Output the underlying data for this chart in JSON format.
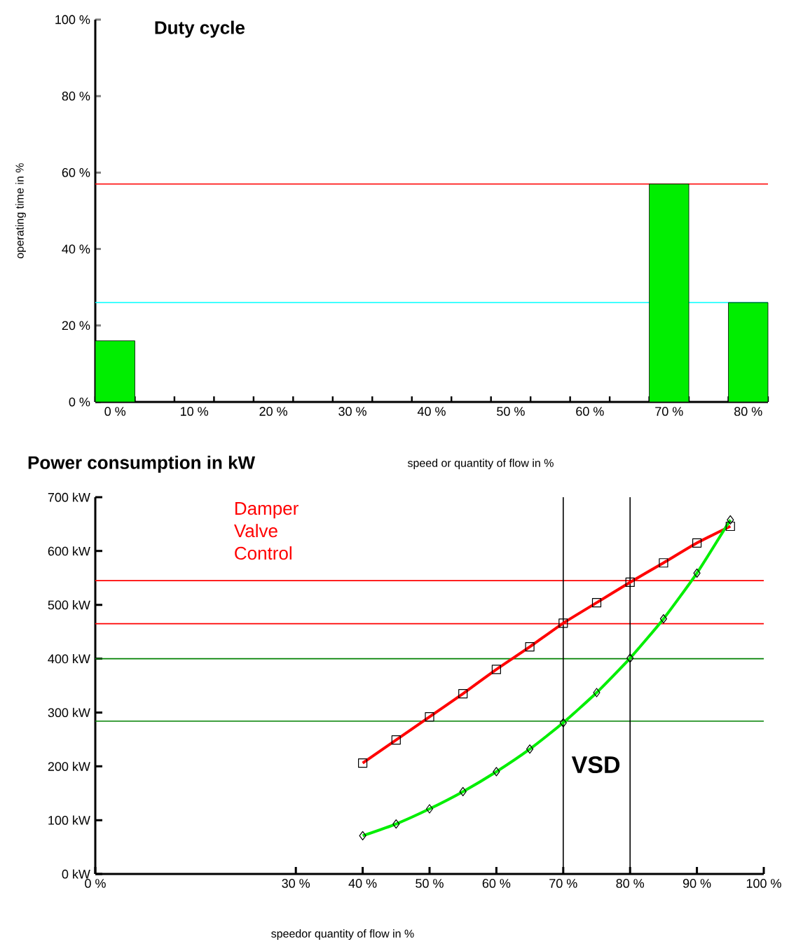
{
  "chart_data": [
    {
      "type": "bar",
      "title": "Duty cycle",
      "xlabel": "speed or quantity of flow in %",
      "ylabel": "operating time in %",
      "categories": [
        "0 %",
        "10 %",
        "20 %",
        "30 %",
        "40 %",
        "50 %",
        "60 %",
        "70 %",
        "80 %"
      ],
      "values": [
        16,
        null,
        null,
        null,
        null,
        null,
        null,
        57,
        26
      ],
      "color": "#00ee00",
      "ylim": [
        0,
        100
      ],
      "yticks": [
        {
          "value": 0,
          "label": "0 %"
        },
        {
          "value": 20,
          "label": "20 %"
        },
        {
          "value": 40,
          "label": "40 %"
        },
        {
          "value": 60,
          "label": "60 %"
        },
        {
          "value": 80,
          "label": "80 %"
        },
        {
          "value": 100,
          "label": "100 %"
        }
      ],
      "ref_lines": [
        {
          "axis": "y",
          "value": 57,
          "color": "#ff0000"
        },
        {
          "axis": "y",
          "value": 26,
          "color": "#00ffff"
        }
      ],
      "grid": false
    },
    {
      "type": "line",
      "title": "Power consumption in kW",
      "xlabel": "speedor quantity of flow in %",
      "x": [
        40,
        45,
        50,
        55,
        60,
        65,
        70,
        75,
        80,
        85,
        90,
        95
      ],
      "series": [
        {
          "name": "Damper Valve Control",
          "color": "#ff0000",
          "marker": "square",
          "values": [
            206,
            249,
            292,
            335,
            380,
            422,
            466,
            504,
            542,
            578,
            615,
            646
          ]
        },
        {
          "name": "VSD",
          "color": "#00ee00",
          "marker": "diamond",
          "values": [
            71,
            93,
            121,
            153,
            190,
            232,
            281,
            337,
            401,
            474,
            559,
            658
          ]
        }
      ],
      "xlim": [
        0,
        100
      ],
      "xticks": [
        {
          "value": 0,
          "label": "0 %"
        },
        {
          "value": 30,
          "label": "30 %"
        },
        {
          "value": 40,
          "label": "40 %"
        },
        {
          "value": 50,
          "label": "50 %"
        },
        {
          "value": 60,
          "label": "60 %"
        },
        {
          "value": 70,
          "label": "70 %"
        },
        {
          "value": 80,
          "label": "80 %"
        },
        {
          "value": 90,
          "label": "90 %"
        },
        {
          "value": 100,
          "label": "100 %"
        }
      ],
      "ylim": [
        0,
        700
      ],
      "yticks": [
        {
          "value": 0,
          "label": "0 kW"
        },
        {
          "value": 100,
          "label": "100 kW"
        },
        {
          "value": 200,
          "label": "200 kW"
        },
        {
          "value": 300,
          "label": "300 kW"
        },
        {
          "value": 400,
          "label": "400 kW"
        },
        {
          "value": 500,
          "label": "500 kW"
        },
        {
          "value": 600,
          "label": "600 kW"
        },
        {
          "value": 700,
          "label": "700 kW"
        }
      ],
      "ref_lines": [
        {
          "axis": "y",
          "value": 545,
          "color": "#ff0000"
        },
        {
          "axis": "y",
          "value": 465,
          "color": "#ff0000"
        },
        {
          "axis": "y",
          "value": 400,
          "color": "#008000"
        },
        {
          "axis": "y",
          "value": 284,
          "color": "#008000"
        },
        {
          "axis": "x",
          "value": 70,
          "color": "#000000"
        },
        {
          "axis": "x",
          "value": 80,
          "color": "#000000"
        }
      ],
      "grid": false,
      "line_style": "solid"
    }
  ]
}
